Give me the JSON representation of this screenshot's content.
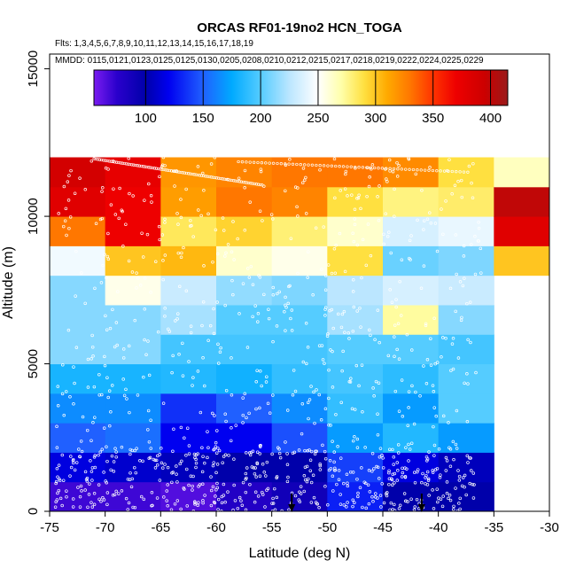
{
  "chart_data": {
    "type": "heatmap",
    "title": "ORCAS RF01-19no2 HCN_TOGA",
    "subtitle_flights": "Flts: 1,3,4,5,6,7,8,9,10,11,12,13,14,15,16,17,18,19",
    "subtitle_dates": "MMDD: 0115,0121,0123,0125,0125,0130,0205,0208,0210,0212,0215,0217,0218,0219,0222,0224,0225,0229",
    "xlabel": "Latitude (deg N)",
    "ylabel": "Altitude (m)",
    "xlim": [
      -75,
      -30
    ],
    "ylim": [
      0,
      15500
    ],
    "x_ticks": [
      -75,
      -70,
      -65,
      -60,
      -55,
      -50,
      -45,
      -40,
      -35,
      -30
    ],
    "y_ticks": [
      0,
      5000,
      10000,
      15000
    ],
    "colorbar": {
      "min": 55,
      "max": 415,
      "ticks": [
        100,
        150,
        200,
        250,
        300,
        350,
        400
      ],
      "dividers": [
        100,
        150,
        200,
        250,
        300,
        350,
        400
      ],
      "stops": [
        {
          "v": 55,
          "c": "#7a1cf0"
        },
        {
          "v": 75,
          "c": "#2a00cc"
        },
        {
          "v": 100,
          "c": "#0000aa"
        },
        {
          "v": 120,
          "c": "#0000f0"
        },
        {
          "v": 150,
          "c": "#2060ff"
        },
        {
          "v": 175,
          "c": "#00aaff"
        },
        {
          "v": 200,
          "c": "#55ccff"
        },
        {
          "v": 225,
          "c": "#bbe6ff"
        },
        {
          "v": 250,
          "c": "#ffffff"
        },
        {
          "v": 270,
          "c": "#ffffaa"
        },
        {
          "v": 290,
          "c": "#ffe040"
        },
        {
          "v": 310,
          "c": "#ffaa00"
        },
        {
          "v": 330,
          "c": "#ff7700"
        },
        {
          "v": 350,
          "c": "#ff3300"
        },
        {
          "v": 370,
          "c": "#ee0000"
        },
        {
          "v": 395,
          "c": "#cc0000"
        },
        {
          "v": 415,
          "c": "#9a1a1a"
        }
      ]
    },
    "bin_width_deg": 5,
    "bin_height_m": 1000,
    "columns": [
      {
        "x0": -75,
        "values": [
          70,
          115,
          150,
          165,
          182,
          212,
          212,
          212,
          245,
          330,
          380,
          390
        ]
      },
      {
        "x0": -70,
        "values": [
          70,
          110,
          155,
          165,
          182,
          212,
          212,
          255,
          300,
          370,
          370,
          375
        ]
      },
      {
        "x0": -65,
        "values": [
          65,
          105,
          120,
          135,
          185,
          195,
          220,
          230,
          305,
          285,
          315,
          318
        ]
      },
      {
        "x0": -60,
        "values": [
          80,
          100,
          120,
          150,
          180,
          195,
          200,
          215,
          262,
          295,
          330,
          325
        ]
      },
      {
        "x0": -55,
        "values": [
          90,
          100,
          145,
          165,
          190,
          195,
          200,
          210,
          255,
          280,
          325,
          330
        ]
      },
      {
        "x0": -50,
        "values": [
          130,
          140,
          170,
          190,
          195,
          200,
          220,
          225,
          290,
          262,
          290,
          330
        ]
      },
      {
        "x0": -45,
        "values": [
          100,
          115,
          185,
          170,
          188,
          200,
          272,
          235,
          205,
          235,
          278,
          322
        ]
      },
      {
        "x0": -40,
        "values": [
          100,
          105,
          170,
          200,
          200,
          195,
          212,
          230,
          210,
          242,
          282,
          290
        ]
      },
      {
        "x0": -35,
        "values": [
          null,
          null,
          null,
          null,
          null,
          null,
          null,
          null,
          300,
          380,
          400,
          265
        ]
      }
    ],
    "markers": [
      {
        "lat": -53.2,
        "alt": 0
      },
      {
        "lat": -41.5,
        "alt": 0
      }
    ]
  }
}
